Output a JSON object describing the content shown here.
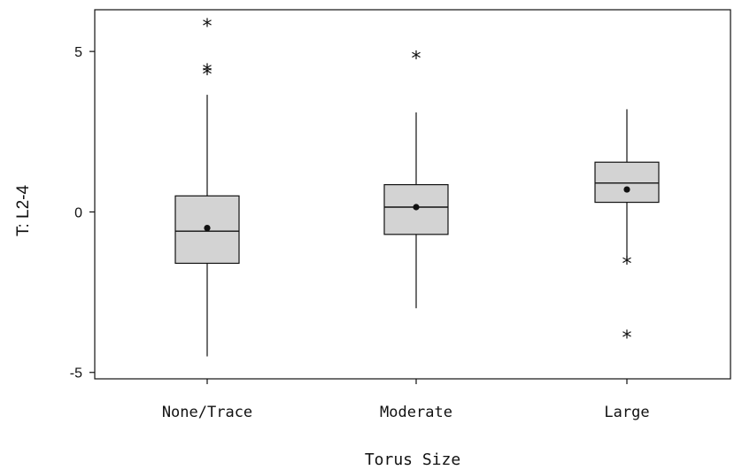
{
  "chart_data": {
    "type": "box",
    "xlabel": "Torus Size",
    "ylabel": "T: L2-4",
    "ylim": [
      -5.2,
      6.3
    ],
    "yticks": [
      -5,
      0,
      5
    ],
    "categories": [
      "None/Trace",
      "Moderate",
      "Large"
    ],
    "boxes": [
      {
        "category": "None/Trace",
        "whisker_low": -4.5,
        "q1": -1.6,
        "median": -0.6,
        "q3": 0.5,
        "whisker_high": 3.65,
        "mean": -0.5,
        "outliers": [
          5.8,
          4.4,
          4.3
        ]
      },
      {
        "category": "Moderate",
        "whisker_low": -3.0,
        "q1": -0.7,
        "median": 0.15,
        "q3": 0.85,
        "whisker_high": 3.1,
        "mean": 0.15,
        "outliers": [
          4.8
        ]
      },
      {
        "category": "Large",
        "whisker_low": -1.5,
        "q1": 0.3,
        "median": 0.9,
        "q3": 1.55,
        "whisker_high": 3.2,
        "mean": 0.7,
        "outliers": [
          -1.6,
          -3.9
        ]
      }
    ],
    "colors": {
      "box_fill": "#d3d3d3",
      "stroke": "#111111"
    }
  }
}
